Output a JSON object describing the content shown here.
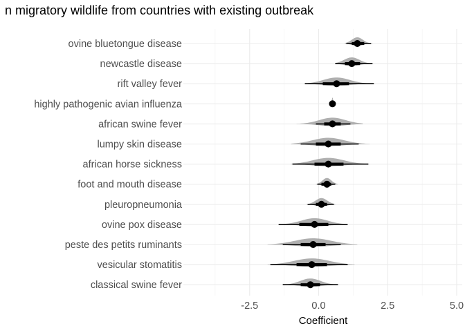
{
  "chart_data": {
    "type": "scatter",
    "title": "n migratory wildlife from countries with existing outbreak",
    "xlabel": "Coefficient",
    "ylabel": "",
    "xlim": [
      -4.9,
      5.2
    ],
    "xticks": [
      -2.5,
      0.0,
      2.5,
      5.0
    ],
    "xtick_labels": [
      "-2.5",
      "0.0",
      "2.5",
      "5.0"
    ],
    "grid": true,
    "categories": [
      "ovine bluetongue disease",
      "newcastle disease",
      "rift valley fever",
      "highly pathogenic avian influenza",
      "african swine fever",
      "lumpy skin disease",
      "african horse sickness",
      "foot and mouth disease",
      "pleuropneumonia",
      "ovine pox disease",
      "peste des petits ruminants",
      "vesicular stomatitis",
      "classical swine fever"
    ],
    "series": [
      {
        "values": [
          1.4,
          1.2,
          0.65,
          0.5,
          0.5,
          0.35,
          0.35,
          0.3,
          0.1,
          -0.15,
          -0.2,
          -0.25,
          -0.3
        ],
        "interval_66": [
          [
            1.2,
            1.65
          ],
          [
            0.95,
            1.5
          ],
          [
            0.15,
            1.1
          ],
          [
            0.47,
            0.53
          ],
          [
            0.2,
            0.8
          ],
          [
            -0.1,
            0.8
          ],
          [
            -0.15,
            0.9
          ],
          [
            0.1,
            0.45
          ],
          [
            -0.1,
            0.3
          ],
          [
            -0.7,
            0.35
          ],
          [
            -0.65,
            0.25
          ],
          [
            -0.8,
            0.3
          ],
          [
            -0.65,
            0.05
          ]
        ],
        "interval_95": [
          [
            1.0,
            1.9
          ],
          [
            0.6,
            1.95
          ],
          [
            -0.5,
            2.0
          ],
          [
            0.45,
            0.55
          ],
          [
            -0.1,
            1.15
          ],
          [
            -0.65,
            1.45
          ],
          [
            -0.95,
            1.8
          ],
          [
            -0.05,
            0.6
          ],
          [
            -0.4,
            0.55
          ],
          [
            -1.45,
            1.05
          ],
          [
            -1.3,
            0.8
          ],
          [
            -1.75,
            1.05
          ],
          [
            -1.3,
            0.7
          ]
        ],
        "density_range": [
          [
            0.95,
            1.95
          ],
          [
            0.6,
            2.0
          ],
          [
            -0.4,
            2.0
          ],
          [
            0.44,
            0.56
          ],
          [
            -0.8,
            1.6
          ],
          [
            -1.0,
            1.85
          ],
          [
            -1.0,
            1.85
          ],
          [
            -0.1,
            0.7
          ],
          [
            -0.45,
            0.6
          ],
          [
            -1.4,
            1.0
          ],
          [
            -1.85,
            1.4
          ],
          [
            -1.85,
            1.3
          ],
          [
            -1.1,
            0.75
          ]
        ]
      }
    ]
  }
}
